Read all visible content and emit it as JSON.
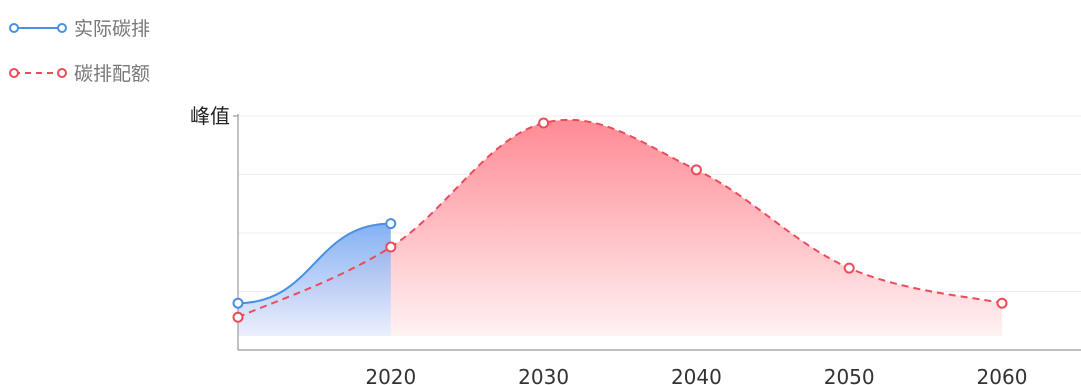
{
  "chart_data": {
    "type": "area",
    "x_ticks": [
      "2020",
      "2030",
      "2040",
      "2050",
      "2060"
    ],
    "y_tick_label": "峰值",
    "ylim": [
      0,
      100
    ],
    "grid": true,
    "legend_position": "top-left",
    "series": [
      {
        "name": "实际碳排",
        "style": "solid",
        "color": "#4a90e2",
        "fill_top": "#6fa3f0",
        "fill_bottom": "#e9efff",
        "points": [
          {
            "x": 2010,
            "y": 20
          },
          {
            "x": 2020,
            "y": 54
          }
        ]
      },
      {
        "name": "碳排配额",
        "style": "dashed",
        "color": "#ec4b5a",
        "fill_top": "#ff8a94",
        "fill_bottom": "#fff2f3",
        "points": [
          {
            "x": 2010,
            "y": 14
          },
          {
            "x": 2020,
            "y": 44
          },
          {
            "x": 2030,
            "y": 97
          },
          {
            "x": 2040,
            "y": 77
          },
          {
            "x": 2050,
            "y": 35
          },
          {
            "x": 2060,
            "y": 20
          }
        ]
      }
    ]
  }
}
